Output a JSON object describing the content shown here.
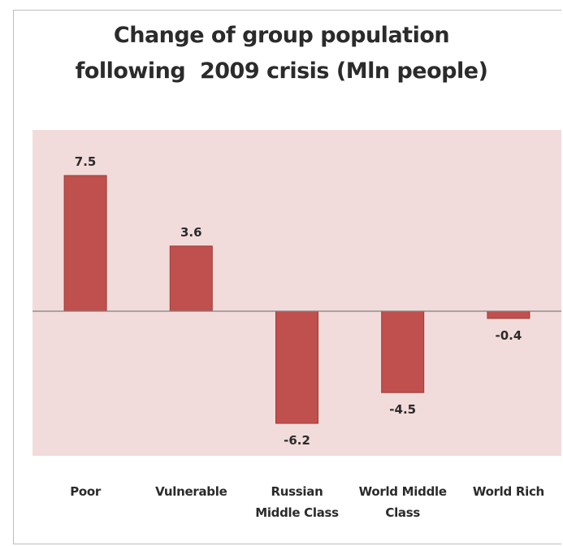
{
  "chart_data": {
    "type": "bar",
    "title": "Change of group population\nfollowing  2009 crisis (Mln people)",
    "xlabel": "",
    "ylabel": "",
    "ylim": [
      -8,
      9
    ],
    "grid": false,
    "legend": "none",
    "categories": [
      [
        "Poor"
      ],
      [
        "Vulnerable"
      ],
      [
        "Russian",
        "Middle Class"
      ],
      [
        "World Middle",
        "Class"
      ],
      [
        "World Rich"
      ]
    ],
    "values": [
      7.5,
      3.6,
      -6.2,
      -4.5,
      -0.4
    ],
    "data_labels": [
      "7.5",
      "3.6",
      "-6.2",
      "-4.5",
      "-0.4"
    ],
    "colors": {
      "bar": "#c0504d",
      "bar_edge": "#9e3b38",
      "plot_background": "#f2dcdb",
      "zero_line": "#7f7f7f",
      "text": "#2b2b2b"
    }
  }
}
